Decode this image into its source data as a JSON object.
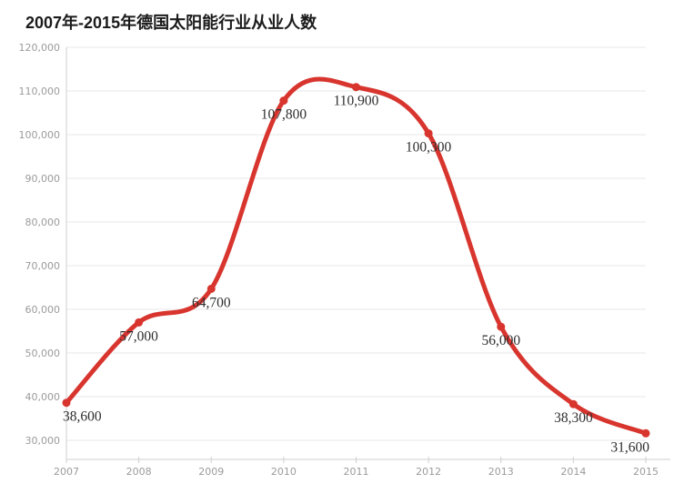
{
  "title": "2007年-2015年德国太阳能行业从业人数",
  "chart_data": {
    "type": "line",
    "curve": "spline",
    "title": "2007年-2015年德国太阳能行业从业人数",
    "categories": [
      "2007",
      "2008",
      "2009",
      "2010",
      "2011",
      "2012",
      "2013",
      "2014",
      "2015"
    ],
    "values": [
      38600,
      57000,
      64700,
      107800,
      110900,
      100300,
      56000,
      38300,
      31600
    ],
    "data_labels": [
      "38,600",
      "57,000",
      "64,700",
      "107,800",
      "110,900",
      "100,300",
      "56,000",
      "38,300",
      "31,600"
    ],
    "xlabel": "",
    "ylabel": "",
    "ylim": [
      30000,
      120000
    ],
    "y_ticks": [
      30000,
      40000,
      50000,
      60000,
      70000,
      80000,
      90000,
      100000,
      110000,
      120000
    ],
    "y_tick_labels": [
      "30,000",
      "40,000",
      "50,000",
      "60,000",
      "70,000",
      "80,000",
      "90,000",
      "100,000",
      "110,000",
      "120,000"
    ],
    "grid": "horizontal",
    "legend": "none",
    "line_color": "#d8352e",
    "marker": "circle",
    "marker_color": "#d8352e"
  },
  "colors": {
    "line": "#d8352e",
    "grid": "#e7e7e7",
    "axis": "#cfcfcf",
    "tick_label": "#9b9b9b",
    "data_label": "#2d2d2d",
    "title": "#1b1b1b",
    "background": "#ffffff"
  }
}
